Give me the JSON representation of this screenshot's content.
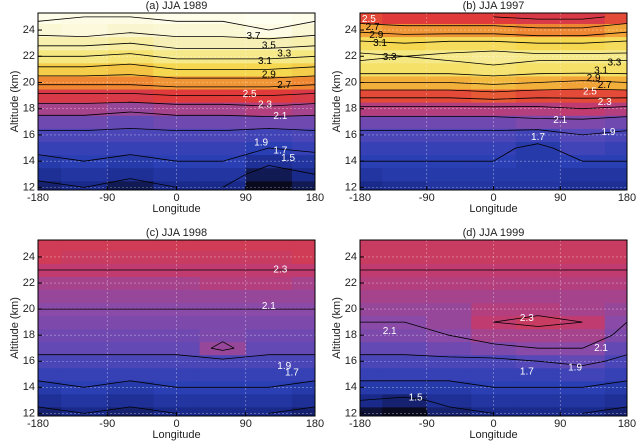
{
  "colormap": [
    {
      "value": 1.3,
      "color": "#0a0a1e"
    },
    {
      "value": 1.5,
      "color": "#1a2a8a"
    },
    {
      "value": 1.7,
      "color": "#2b3fb5"
    },
    {
      "value": 1.9,
      "color": "#5548b8"
    },
    {
      "value": 2.1,
      "color": "#8a4aa8"
    },
    {
      "value": 2.3,
      "color": "#c03c70"
    },
    {
      "value": 2.5,
      "color": "#e03a3a"
    },
    {
      "value": 2.7,
      "color": "#ee7a30"
    },
    {
      "value": 2.9,
      "color": "#f2b03a"
    },
    {
      "value": 3.1,
      "color": "#f5d850"
    },
    {
      "value": 3.3,
      "color": "#f5e880"
    },
    {
      "value": 3.7,
      "color": "#f8f3c8"
    },
    {
      "value": 4.0,
      "color": "#fffff0"
    }
  ],
  "chart_data": [
    {
      "type": "contour",
      "title": "(a) JJA 1989",
      "xlabel": "Longitude",
      "ylabel": "Altitude (km)",
      "grid": true,
      "x": [
        -180,
        -120,
        -60,
        0,
        60,
        120,
        180
      ],
      "y": [
        12,
        13,
        14,
        15,
        16,
        17,
        18,
        19,
        20,
        21,
        22,
        23,
        24,
        25
      ],
      "z": [
        [
          1.45,
          1.5,
          1.4,
          1.5,
          1.5,
          1.3,
          1.4
        ],
        [
          1.55,
          1.6,
          1.55,
          1.6,
          1.6,
          1.4,
          1.5
        ],
        [
          1.65,
          1.7,
          1.65,
          1.7,
          1.7,
          1.55,
          1.6
        ],
        [
          1.75,
          1.75,
          1.75,
          1.75,
          1.75,
          1.7,
          1.75
        ],
        [
          1.85,
          1.85,
          1.85,
          1.85,
          1.85,
          1.8,
          1.85
        ],
        [
          2.0,
          2.0,
          1.95,
          2.0,
          2.0,
          2.0,
          2.0
        ],
        [
          2.2,
          2.2,
          2.15,
          2.2,
          2.2,
          2.25,
          2.2
        ],
        [
          2.45,
          2.45,
          2.45,
          2.5,
          2.5,
          2.5,
          2.45
        ],
        [
          2.75,
          2.75,
          2.75,
          2.8,
          2.8,
          2.8,
          2.75
        ],
        [
          3.05,
          3.05,
          3.0,
          3.1,
          3.1,
          3.1,
          3.05
        ],
        [
          3.3,
          3.3,
          3.25,
          3.35,
          3.35,
          3.35,
          3.3
        ],
        [
          3.55,
          3.55,
          3.5,
          3.6,
          3.6,
          3.6,
          3.55
        ],
        [
          3.8,
          3.85,
          3.75,
          3.8,
          3.8,
          3.9,
          3.8
        ],
        [
          3.95,
          3.9,
          3.9,
          3.95,
          3.95,
          4.0,
          3.95
        ]
      ],
      "xlim": [
        -180,
        180
      ],
      "ylim": [
        11.8,
        25.3
      ],
      "xticks": [
        -180,
        -90,
        0,
        90,
        180
      ],
      "yticks": [
        12,
        14,
        16,
        18,
        20,
        22,
        24
      ],
      "levels": [
        1.3,
        1.5,
        1.7,
        1.9,
        2.1,
        2.3,
        2.5,
        2.7,
        2.9,
        3.1,
        3.3,
        3.5,
        3.7,
        3.9
      ],
      "contour_labels": [
        {
          "x": 100,
          "y": 23.5,
          "value": 3.7
        },
        {
          "x": 120,
          "y": 22.8,
          "value": 3.5
        },
        {
          "x": 140,
          "y": 22.2,
          "value": 3.3
        },
        {
          "x": 115,
          "y": 21.6,
          "value": 3.1
        },
        {
          "x": 120,
          "y": 20.6,
          "value": 2.9
        },
        {
          "x": 140,
          "y": 19.8,
          "value": 2.7
        },
        {
          "x": 95,
          "y": 19.1,
          "value": 2.5
        },
        {
          "x": 115,
          "y": 18.3,
          "value": 2.3
        },
        {
          "x": 135,
          "y": 17.4,
          "value": 2.1
        },
        {
          "x": 110,
          "y": 15.4,
          "value": 1.9
        },
        {
          "x": 135,
          "y": 14.8,
          "value": 1.7
        },
        {
          "x": 145,
          "y": 14.2,
          "value": 1.5
        }
      ]
    },
    {
      "type": "contour",
      "title": "(b) JJA 1997",
      "xlabel": "Longitude",
      "ylabel": "Altitude (km)",
      "grid": true,
      "x": [
        -180,
        -120,
        -60,
        0,
        60,
        120,
        180
      ],
      "y": [
        12,
        13,
        14,
        15,
        16,
        17,
        18,
        19,
        20,
        21,
        22,
        23,
        24,
        25
      ],
      "z": [
        [
          1.5,
          1.55,
          1.6,
          1.6,
          1.6,
          1.55,
          1.55
        ],
        [
          1.6,
          1.65,
          1.65,
          1.65,
          1.65,
          1.6,
          1.6
        ],
        [
          1.7,
          1.7,
          1.7,
          1.7,
          1.65,
          1.7,
          1.7
        ],
        [
          1.75,
          1.75,
          1.75,
          1.75,
          1.65,
          1.8,
          1.75
        ],
        [
          1.85,
          1.85,
          1.85,
          1.85,
          1.8,
          1.9,
          1.85
        ],
        [
          2.0,
          2.0,
          2.0,
          2.0,
          2.05,
          2.05,
          2.0
        ],
        [
          2.25,
          2.25,
          2.25,
          2.25,
          2.25,
          2.3,
          2.25
        ],
        [
          2.55,
          2.55,
          2.55,
          2.6,
          2.55,
          2.55,
          2.55
        ],
        [
          2.9,
          2.9,
          2.9,
          2.95,
          2.9,
          2.85,
          2.9
        ],
        [
          3.2,
          3.2,
          3.2,
          3.25,
          3.2,
          3.2,
          3.2
        ],
        [
          3.35,
          3.3,
          3.35,
          3.4,
          3.35,
          3.35,
          3.35
        ],
        [
          3.15,
          3.1,
          3.15,
          3.15,
          3.1,
          3.1,
          3.15
        ],
        [
          2.85,
          2.8,
          2.8,
          2.8,
          2.75,
          2.75,
          2.85
        ],
        [
          2.55,
          2.5,
          2.5,
          2.5,
          2.45,
          2.45,
          2.55
        ]
      ],
      "xlim": [
        -180,
        180
      ],
      "ylim": [
        11.8,
        25.3
      ],
      "xticks": [
        -180,
        -90,
        0,
        90,
        180
      ],
      "yticks": [
        12,
        14,
        16,
        18,
        20,
        22,
        24
      ],
      "levels": [
        1.3,
        1.5,
        1.7,
        1.9,
        2.1,
        2.3,
        2.5,
        2.7,
        2.9,
        3.1,
        3.3,
        3.5,
        3.7,
        3.9
      ],
      "contour_labels": [
        {
          "x": -168,
          "y": 24.8,
          "value": 2.5
        },
        {
          "x": -163,
          "y": 24.2,
          "value": 2.7
        },
        {
          "x": -158,
          "y": 23.6,
          "value": 2.9
        },
        {
          "x": -153,
          "y": 23.0,
          "value": 3.1
        },
        {
          "x": -140,
          "y": 21.9,
          "value": 3.3
        },
        {
          "x": 163,
          "y": 21.5,
          "value": 3.3
        },
        {
          "x": 145,
          "y": 20.9,
          "value": 3.1
        },
        {
          "x": 135,
          "y": 20.3,
          "value": 2.9
        },
        {
          "x": 150,
          "y": 19.8,
          "value": 2.7
        },
        {
          "x": 130,
          "y": 19.3,
          "value": 2.5
        },
        {
          "x": 150,
          "y": 18.5,
          "value": 2.3
        },
        {
          "x": 90,
          "y": 17.1,
          "value": 2.1
        },
        {
          "x": 155,
          "y": 16.2,
          "value": 1.9
        },
        {
          "x": 60,
          "y": 15.8,
          "value": 1.7
        }
      ]
    },
    {
      "type": "contour",
      "title": "(c) JJA 1998",
      "xlabel": "Longitude",
      "ylabel": "Altitude (km)",
      "grid": true,
      "x": [
        -180,
        -120,
        -60,
        0,
        60,
        120,
        180
      ],
      "y": [
        12,
        13,
        14,
        15,
        16,
        17,
        18,
        19,
        20,
        21,
        22,
        23,
        24,
        25
      ],
      "z": [
        [
          1.45,
          1.5,
          1.45,
          1.5,
          1.5,
          1.5,
          1.45
        ],
        [
          1.55,
          1.6,
          1.55,
          1.6,
          1.6,
          1.6,
          1.55
        ],
        [
          1.65,
          1.7,
          1.65,
          1.7,
          1.7,
          1.7,
          1.65
        ],
        [
          1.75,
          1.75,
          1.75,
          1.75,
          1.75,
          1.75,
          1.75
        ],
        [
          1.85,
          1.85,
          1.85,
          1.85,
          1.85,
          1.85,
          1.85
        ],
        [
          1.95,
          1.95,
          1.95,
          1.95,
          2.15,
          1.95,
          1.95
        ],
        [
          2.0,
          2.0,
          2.0,
          2.0,
          2.05,
          2.0,
          2.0
        ],
        [
          2.05,
          2.05,
          2.05,
          2.05,
          2.05,
          2.05,
          2.05
        ],
        [
          2.1,
          2.1,
          2.1,
          2.1,
          2.1,
          2.1,
          2.1
        ],
        [
          2.15,
          2.15,
          2.15,
          2.15,
          2.15,
          2.15,
          2.15
        ],
        [
          2.2,
          2.2,
          2.2,
          2.2,
          2.25,
          2.25,
          2.2
        ],
        [
          2.3,
          2.3,
          2.3,
          2.3,
          2.3,
          2.3,
          2.3
        ],
        [
          2.4,
          2.35,
          2.35,
          2.35,
          2.35,
          2.35,
          2.4
        ],
        [
          2.4,
          2.4,
          2.4,
          2.4,
          2.4,
          2.4,
          2.4
        ]
      ],
      "xlim": [
        -180,
        180
      ],
      "ylim": [
        11.8,
        25.3
      ],
      "xticks": [
        -180,
        -90,
        0,
        90,
        180
      ],
      "yticks": [
        12,
        14,
        16,
        18,
        20,
        22,
        24
      ],
      "levels": [
        1.3,
        1.5,
        1.7,
        1.9,
        2.1,
        2.3,
        2.5
      ],
      "contour_labels": [
        {
          "x": 135,
          "y": 23.0,
          "value": 2.3
        },
        {
          "x": 120,
          "y": 20.2,
          "value": 2.1
        },
        {
          "x": 140,
          "y": 15.6,
          "value": 1.9
        },
        {
          "x": 150,
          "y": 15.1,
          "value": 1.7
        }
      ]
    },
    {
      "type": "contour",
      "title": "(d) JJA 1999",
      "xlabel": "Longitude",
      "ylabel": "Altitude (km)",
      "grid": true,
      "x": [
        -180,
        -120,
        -60,
        0,
        60,
        120,
        180
      ],
      "y": [
        12,
        13,
        14,
        15,
        16,
        17,
        18,
        19,
        20,
        21,
        22,
        23,
        24,
        25
      ],
      "z": [
        [
          1.35,
          1.3,
          1.45,
          1.5,
          1.5,
          1.5,
          1.45
        ],
        [
          1.5,
          1.45,
          1.55,
          1.6,
          1.6,
          1.6,
          1.55
        ],
        [
          1.65,
          1.65,
          1.65,
          1.7,
          1.7,
          1.7,
          1.65
        ],
        [
          1.75,
          1.75,
          1.75,
          1.75,
          1.75,
          1.8,
          1.75
        ],
        [
          1.85,
          1.85,
          1.85,
          1.85,
          1.9,
          1.95,
          1.85
        ],
        [
          1.95,
          1.95,
          2.0,
          2.05,
          2.1,
          2.1,
          1.95
        ],
        [
          2.05,
          2.05,
          2.1,
          2.2,
          2.2,
          2.2,
          2.05
        ],
        [
          2.1,
          2.1,
          2.15,
          2.3,
          2.35,
          2.3,
          2.1
        ],
        [
          2.15,
          2.15,
          2.15,
          2.25,
          2.25,
          2.2,
          2.15
        ],
        [
          2.2,
          2.2,
          2.2,
          2.2,
          2.2,
          2.2,
          2.2
        ],
        [
          2.25,
          2.25,
          2.25,
          2.25,
          2.25,
          2.25,
          2.25
        ],
        [
          2.3,
          2.3,
          2.3,
          2.3,
          2.3,
          2.3,
          2.3
        ],
        [
          2.35,
          2.35,
          2.35,
          2.35,
          2.35,
          2.35,
          2.35
        ],
        [
          2.35,
          2.35,
          2.35,
          2.35,
          2.35,
          2.35,
          2.35
        ]
      ],
      "xlim": [
        -180,
        180
      ],
      "ylim": [
        11.8,
        25.3
      ],
      "xticks": [
        -180,
        -90,
        0,
        90,
        180
      ],
      "yticks": [
        12,
        14,
        16,
        18,
        20,
        22,
        24
      ],
      "levels": [
        1.3,
        1.5,
        1.7,
        1.9,
        2.1,
        2.3
      ],
      "contour_labels": [
        {
          "x": 45,
          "y": 19.3,
          "value": 2.3
        },
        {
          "x": -140,
          "y": 18.3,
          "value": 2.1
        },
        {
          "x": 145,
          "y": 17.0,
          "value": 2.1
        },
        {
          "x": 110,
          "y": 15.5,
          "value": 1.9
        },
        {
          "x": 45,
          "y": 15.2,
          "value": 1.7
        },
        {
          "x": -105,
          "y": 13.2,
          "value": 1.5
        }
      ]
    }
  ]
}
